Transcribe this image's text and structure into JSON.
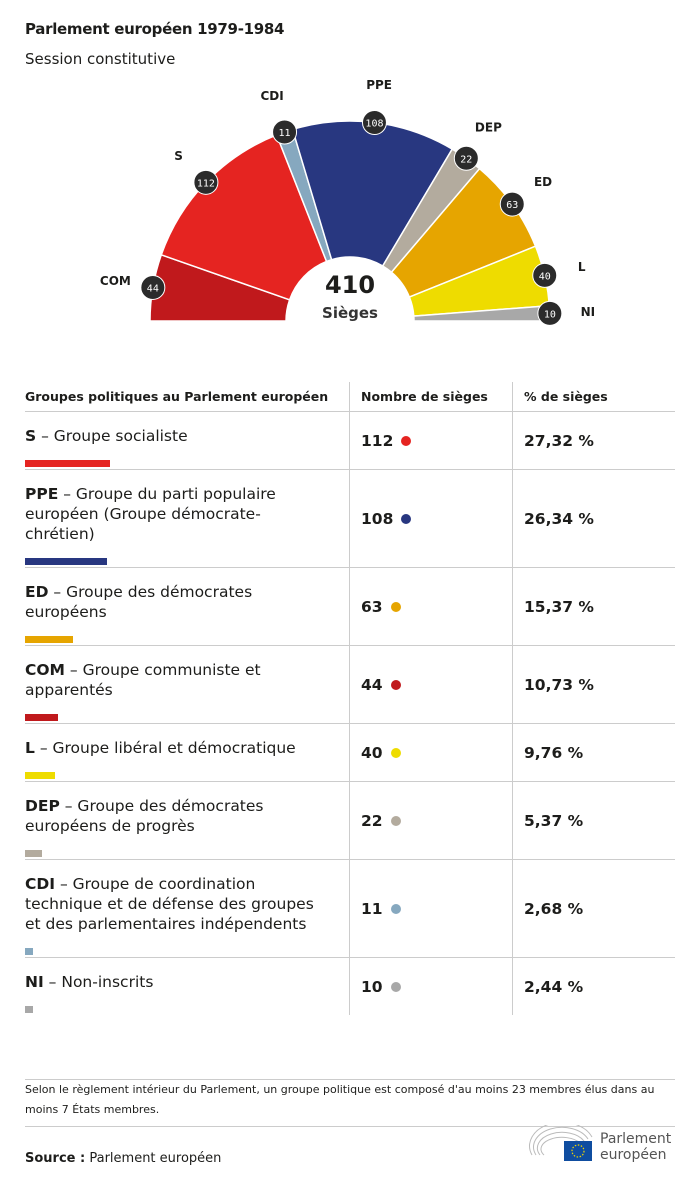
{
  "header": {
    "title": "Parlement européen 1979-1984",
    "subtitle": "Session constitutive"
  },
  "chart_data": {
    "type": "pie",
    "subtype": "hemicycle",
    "total": 410,
    "total_label": "Sièges",
    "seats_order": [
      {
        "abbr": "COM",
        "seats": 44,
        "color": "#c0191c"
      },
      {
        "abbr": "S",
        "seats": 112,
        "color": "#e52421"
      },
      {
        "abbr": "CDI",
        "seats": 11,
        "color": "#86a8bf"
      },
      {
        "abbr": "PPE",
        "seats": 108,
        "color": "#283780"
      },
      {
        "abbr": "DEP",
        "seats": 22,
        "color": "#b3ab9e"
      },
      {
        "abbr": "ED",
        "seats": 63,
        "color": "#e6a500"
      },
      {
        "abbr": "L",
        "seats": 40,
        "color": "#eedc00"
      },
      {
        "abbr": "NI",
        "seats": 10,
        "color": "#a8a8a8"
      }
    ]
  },
  "table": {
    "headers": [
      "Groupes politiques au Parlement européen",
      "Nombre de sièges",
      "% de sièges"
    ],
    "rows": [
      {
        "abbr": "S",
        "name": " – Groupe socialiste",
        "seats": "112",
        "pct": "27,32 %",
        "color": "#e52421",
        "seatsNum": 112
      },
      {
        "abbr": "PPE",
        "name": " – Groupe du parti populaire européen (Groupe démocrate-chrétien)",
        "seats": "108",
        "pct": "26,34 %",
        "color": "#283780",
        "seatsNum": 108
      },
      {
        "abbr": "ED",
        "name": " – Groupe des démocrates européens",
        "seats": "63",
        "pct": "15,37 %",
        "color": "#e6a500",
        "seatsNum": 63
      },
      {
        "abbr": "COM",
        "name": " – Groupe communiste et apparentés",
        "seats": "44",
        "pct": "10,73 %",
        "color": "#c0191c",
        "seatsNum": 44
      },
      {
        "abbr": "L",
        "name": " – Groupe libéral et démocratique",
        "seats": "40",
        "pct": "9,76 %",
        "color": "#eedc00",
        "seatsNum": 40
      },
      {
        "abbr": "DEP",
        "name": " – Groupe des démocrates européens de progrès",
        "seats": "22",
        "pct": "5,37 %",
        "color": "#b3ab9e",
        "seatsNum": 22
      },
      {
        "abbr": "CDI",
        "name": " – Groupe de coordination technique et de défense des groupes et des parlementaires indépendents",
        "seats": "11",
        "pct": "2,68 %",
        "color": "#86a8bf",
        "seatsNum": 11
      },
      {
        "abbr": "NI",
        "name": " – Non-inscrits",
        "seats": "10",
        "pct": "2,44 %",
        "color": "#a8a8a8",
        "seatsNum": 10
      }
    ]
  },
  "footer": {
    "note": "Selon le règlement intérieur du Parlement, un groupe politique est composé d'au moins 23 membres élus dans au moins 7 États membres.",
    "source_label": "Source :",
    "source": " Parlement européen",
    "logo_line1": "Parlement",
    "logo_line2": "européen"
  }
}
